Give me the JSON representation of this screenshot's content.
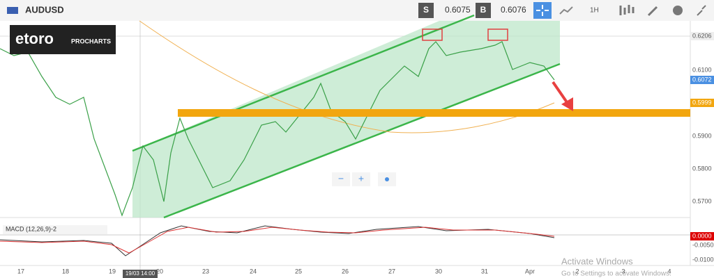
{
  "toolbar": {
    "symbol": "AUDUSD",
    "sell_label": "S",
    "sell_price": "0.6075",
    "buy_label": "B",
    "buy_price": "0.6076",
    "timeframe": "1H"
  },
  "logo": {
    "brand": "etoro",
    "product": "PROCHARTS"
  },
  "price_axis": [
    "0.6206",
    "0.6100",
    "0.6072",
    "0.5999",
    "0.5900",
    "0.5800",
    "0.5700"
  ],
  "macd_axis": [
    "0.0000",
    "-0.0050",
    "-0.0100"
  ],
  "macd_label": "MACD (12,26,9)-2",
  "date_axis": [
    "17",
    "18",
    "19",
    "20",
    "23",
    "24",
    "25",
    "26",
    "27",
    "30",
    "31",
    "Apr",
    "2",
    "3",
    "4"
  ],
  "crosshair_label": "19/03 14:00",
  "zoom": {
    "minus": "−",
    "plus": "+"
  },
  "watermark": {
    "title": "Activate Windows",
    "subtitle": "Go to Settings to activate Windows."
  }
}
